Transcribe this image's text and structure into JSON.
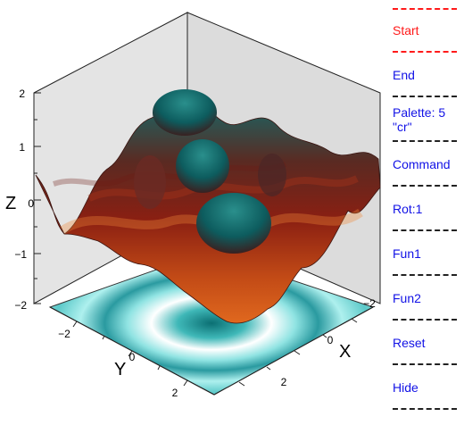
{
  "plot": {
    "axis_labels": {
      "x": "X",
      "y": "Y",
      "z": "Z"
    },
    "z_ticks": [
      "2",
      "1",
      "0",
      "−1",
      "−2"
    ],
    "x_ticks": [
      "−2",
      "0",
      "2"
    ],
    "y_ticks": [
      "−2",
      "0",
      "2"
    ],
    "colors": {
      "surface_high": "#0f6e6e",
      "surface_mid": "#8a1f12",
      "surface_low": "#e0681e",
      "contour_high": "#0b6f73",
      "contour_low": "#aef0ee",
      "wall": "#e2e2e2"
    }
  },
  "menu": {
    "items": [
      {
        "label": "Start",
        "color": "#ff1a1a"
      },
      {
        "label": "End",
        "color": "#1212e6"
      },
      {
        "label": "Palette: 5\n\"cr\"",
        "color": "#1212e6"
      },
      {
        "label": "Command",
        "color": "#1212e6"
      },
      {
        "label": "Rot:1",
        "color": "#1212e6"
      },
      {
        "label": "Fun1",
        "color": "#1212e6"
      },
      {
        "label": "Fun2",
        "color": "#1212e6"
      },
      {
        "label": "Reset",
        "color": "#1212e6"
      },
      {
        "label": "Hide",
        "color": "#1212e6"
      }
    ]
  }
}
